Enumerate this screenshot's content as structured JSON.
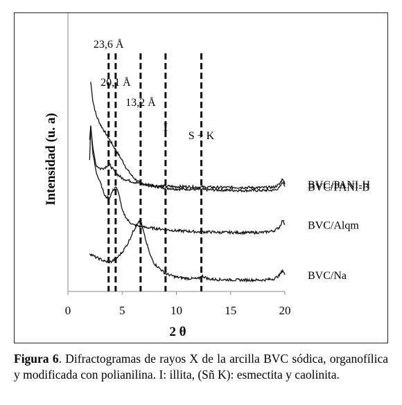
{
  "chart_data": {
    "type": "line",
    "xlabel": "2 θ",
    "ylabel": "Intensidad (u. a)",
    "xlim": [
      0,
      20
    ],
    "xticks": [
      0,
      5,
      10,
      15,
      20
    ],
    "ylim": [
      0,
      100
    ],
    "yticks": [],
    "grid": false,
    "series": [
      {
        "name": "BVC/PANI-B",
        "x": [
          2.1,
          2.3,
          2.6,
          3.0,
          3.4,
          3.8,
          4.2,
          4.6,
          5.0,
          5.5,
          6.0,
          6.5,
          7.0,
          8.0,
          9.0,
          10.0,
          11.0,
          12.0,
          13.0,
          14.0,
          15.0,
          16.0,
          17.0,
          18.0,
          19.0,
          19.5,
          19.8,
          20.0
        ],
        "y": [
          88,
          80,
          74,
          70,
          67,
          64,
          61,
          58,
          55,
          51,
          48,
          46,
          45,
          44,
          43.5,
          43,
          43,
          42.8,
          42.7,
          42.6,
          42.5,
          42.4,
          42.4,
          42.4,
          42.5,
          43.5,
          46,
          44
        ]
      },
      {
        "name": "BVC/PANI-H",
        "x": [
          2.0,
          2.1,
          2.3,
          2.6,
          3.0,
          3.4,
          3.8,
          4.2,
          4.6,
          5.0,
          6.0,
          7.0,
          8.0,
          9.0,
          10.0,
          11.0,
          12.0,
          13.0,
          14.0,
          15.0,
          16.0,
          17.0,
          18.0,
          19.0,
          19.5,
          19.8,
          20.0
        ],
        "y": [
          64,
          70,
          60,
          53,
          51.5,
          52,
          53.5,
          51,
          49,
          47.5,
          46,
          45,
          44.5,
          44.2,
          44,
          44,
          43.8,
          43.8,
          43.7,
          43.7,
          43.7,
          43.6,
          43.6,
          43.8,
          45,
          47.5,
          45
        ]
      },
      {
        "name": "BVC/Alqm",
        "x": [
          2.0,
          2.1,
          2.3,
          2.6,
          3.0,
          3.4,
          3.8,
          4.1,
          4.4,
          4.7,
          5.0,
          5.5,
          6.0,
          7.0,
          8.0,
          9.0,
          10.0,
          11.0,
          12.0,
          13.0,
          14.0,
          15.0,
          16.0,
          17.0,
          18.0,
          19.0,
          19.5,
          19.8,
          20.0
        ],
        "y": [
          55,
          70,
          58,
          50,
          46,
          40,
          39,
          42,
          44,
          41,
          34,
          30,
          28,
          27,
          26.5,
          26,
          25.5,
          25.3,
          25,
          25,
          24.8,
          24.8,
          24.7,
          24.7,
          24.8,
          25.5,
          27,
          30,
          28
        ]
      },
      {
        "name": "BVC/Na",
        "x": [
          2.0,
          2.5,
          3.0,
          3.5,
          4.0,
          4.5,
          5.0,
          5.5,
          6.0,
          6.5,
          6.8,
          7.2,
          7.6,
          8.0,
          9.0,
          10.0,
          11.0,
          12.0,
          12.4,
          13.0,
          14.0,
          15.0,
          16.0,
          17.0,
          18.0,
          19.0,
          19.5,
          19.8,
          20.0
        ],
        "y": [
          16,
          14.5,
          13.5,
          12.5,
          12.5,
          14,
          16.5,
          20,
          25,
          29.5,
          28,
          21,
          15,
          11.5,
          7.5,
          6,
          5.5,
          5.3,
          6.5,
          5.2,
          5,
          4.9,
          4.8,
          4.8,
          4.8,
          5.3,
          6.8,
          9,
          7
        ]
      }
    ],
    "vlines": [
      {
        "x": 3.75,
        "label": "23,6 Å"
      },
      {
        "x": 4.4,
        "label": "20,1 Å"
      },
      {
        "x": 6.7,
        "label": "13,2 Å"
      },
      {
        "x": 9.0,
        "label": "I"
      },
      {
        "x": 12.3,
        "label": "S + K"
      }
    ]
  },
  "caption": {
    "figure_label": "Figura 6",
    "text": ". Difractogramas de rayos X de la arcilla BVC sódica, organofílica y modificada con polianilina. I: illita, (Sñ K): esmectita y caolinita."
  }
}
